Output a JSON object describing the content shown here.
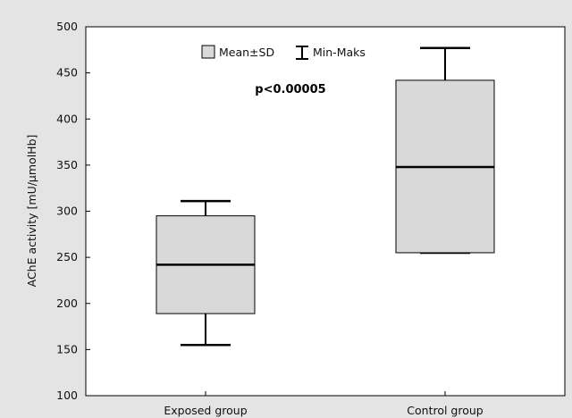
{
  "chart_data": {
    "type": "box",
    "categories": [
      "Exposed group",
      "Control group"
    ],
    "boxes": [
      {
        "category": "Exposed group",
        "mean": 242,
        "sd_low": 189,
        "sd_high": 295,
        "min": 155,
        "max": 311
      },
      {
        "category": "Control group",
        "mean": 348,
        "sd_low": 255,
        "sd_high": 442,
        "min": 255,
        "max": 477
      }
    ],
    "ylabel": "AChE activity [mU/µmolHb]",
    "xlabel": "",
    "ylim": [
      100,
      500
    ],
    "yticks": [
      100,
      150,
      200,
      250,
      300,
      350,
      400,
      450,
      500
    ],
    "grid": false,
    "legend": {
      "position": "top-center",
      "box_label": "Mean±SD",
      "whisker_label": "Min-Maks"
    },
    "annotation": "p<0.00005",
    "colors": {
      "box_fill": "#d9d9d9",
      "box_stroke": "#000000",
      "background": "#e4e4e4",
      "plot_bg": "#ffffff"
    }
  }
}
